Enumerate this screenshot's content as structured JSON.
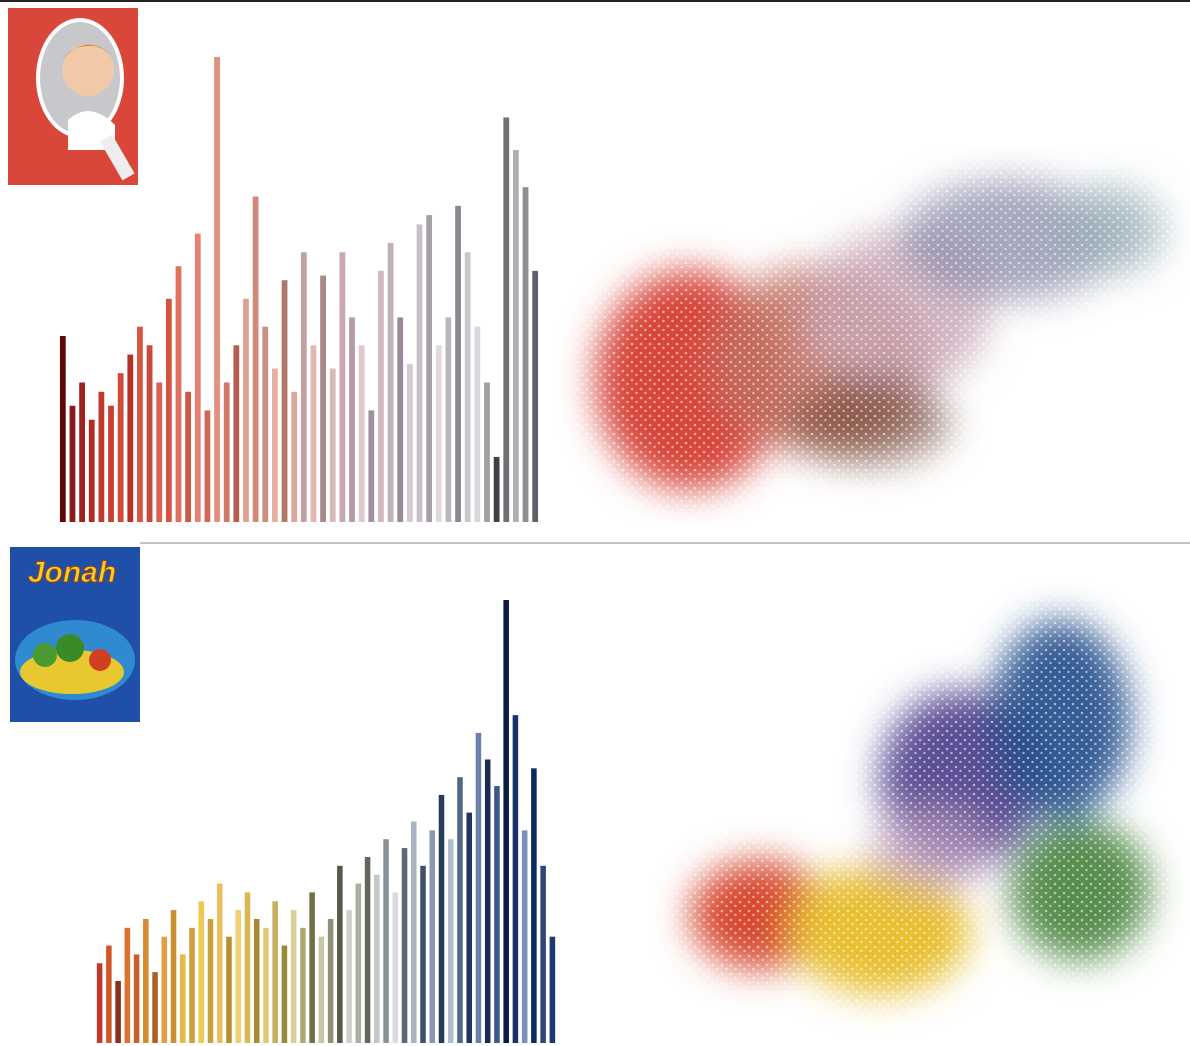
{
  "poster_text": "Jonah",
  "chart_data": [
    {
      "type": "bar",
      "ylim": [
        0,
        100
      ],
      "values": [
        40,
        25,
        30,
        22,
        28,
        25,
        32,
        36,
        42,
        38,
        30,
        48,
        55,
        28,
        62,
        24,
        100,
        30,
        38,
        48,
        70,
        42,
        33,
        52,
        28,
        58,
        38,
        53,
        33,
        58,
        44,
        38,
        24,
        54,
        60,
        44,
        34,
        64,
        66,
        38,
        44,
        68,
        58,
        42,
        30,
        14,
        87,
        80,
        72,
        54
      ],
      "colors": [
        "#5a0a0a",
        "#8b1a1a",
        "#a02020",
        "#b22a22",
        "#c0392b",
        "#c94030",
        "#d04a38",
        "#b83028",
        "#d8553f",
        "#c8483a",
        "#e06050",
        "#d35440",
        "#e07060",
        "#c85a48",
        "#e88070",
        "#d06a58",
        "#e49080",
        "#cf7868",
        "#b65e50",
        "#e0a090",
        "#d08a7a",
        "#c89080",
        "#e8b0a0",
        "#b07868",
        "#d8a898",
        "#c0a0a0",
        "#e0b8b0",
        "#a88888",
        "#d8b8b8",
        "#c8a8b0",
        "#b89aa8",
        "#e0c8c8",
        "#a090a0",
        "#d0b8c0",
        "#c0b0b8",
        "#9a8898",
        "#d8c8d0",
        "#c8c0c8",
        "#a8a0a8",
        "#e0d8dc",
        "#b8b8c0",
        "#8a8890",
        "#c8c8cc",
        "#d8d8dc",
        "#a0a0a4",
        "#404044",
        "#707074",
        "#b0b0b4",
        "#909094",
        "#606068"
      ]
    },
    {
      "type": "bar",
      "ylim": [
        0,
        100
      ],
      "values": [
        18,
        22,
        14,
        26,
        20,
        28,
        16,
        24,
        30,
        20,
        26,
        32,
        28,
        36,
        24,
        30,
        34,
        28,
        26,
        32,
        22,
        30,
        26,
        34,
        24,
        28,
        40,
        30,
        36,
        42,
        38,
        46,
        34,
        44,
        50,
        40,
        48,
        56,
        46,
        60,
        52,
        70,
        64,
        58,
        100,
        74,
        48,
        62,
        40,
        24
      ],
      "colors": [
        "#c0392b",
        "#d2552a",
        "#8a3020",
        "#e07030",
        "#c86028",
        "#d88a30",
        "#b06020",
        "#e0a040",
        "#c89030",
        "#e8b848",
        "#d0a038",
        "#f0c850",
        "#c8a040",
        "#e8c060",
        "#b89030",
        "#f0d070",
        "#d8b850",
        "#a88830",
        "#e0c878",
        "#c8b060",
        "#988838",
        "#d8d098",
        "#b0a870",
        "#707048",
        "#c8c8a8",
        "#909078",
        "#585848",
        "#d0d0c8",
        "#a8b0a0",
        "#606858",
        "#c0c8c8",
        "#889098",
        "#d8dce0",
        "#5a6878",
        "#a8b4c4",
        "#40506a",
        "#8898b0",
        "#2a3a5a",
        "#b0bcd0",
        "#506888",
        "#203460",
        "#6a80a8",
        "#1a2a50",
        "#3a5888",
        "#0a1a40",
        "#1a3068",
        "#7a90b8",
        "#0a2a60",
        "#304878",
        "#1a3a70"
      ]
    }
  ]
}
